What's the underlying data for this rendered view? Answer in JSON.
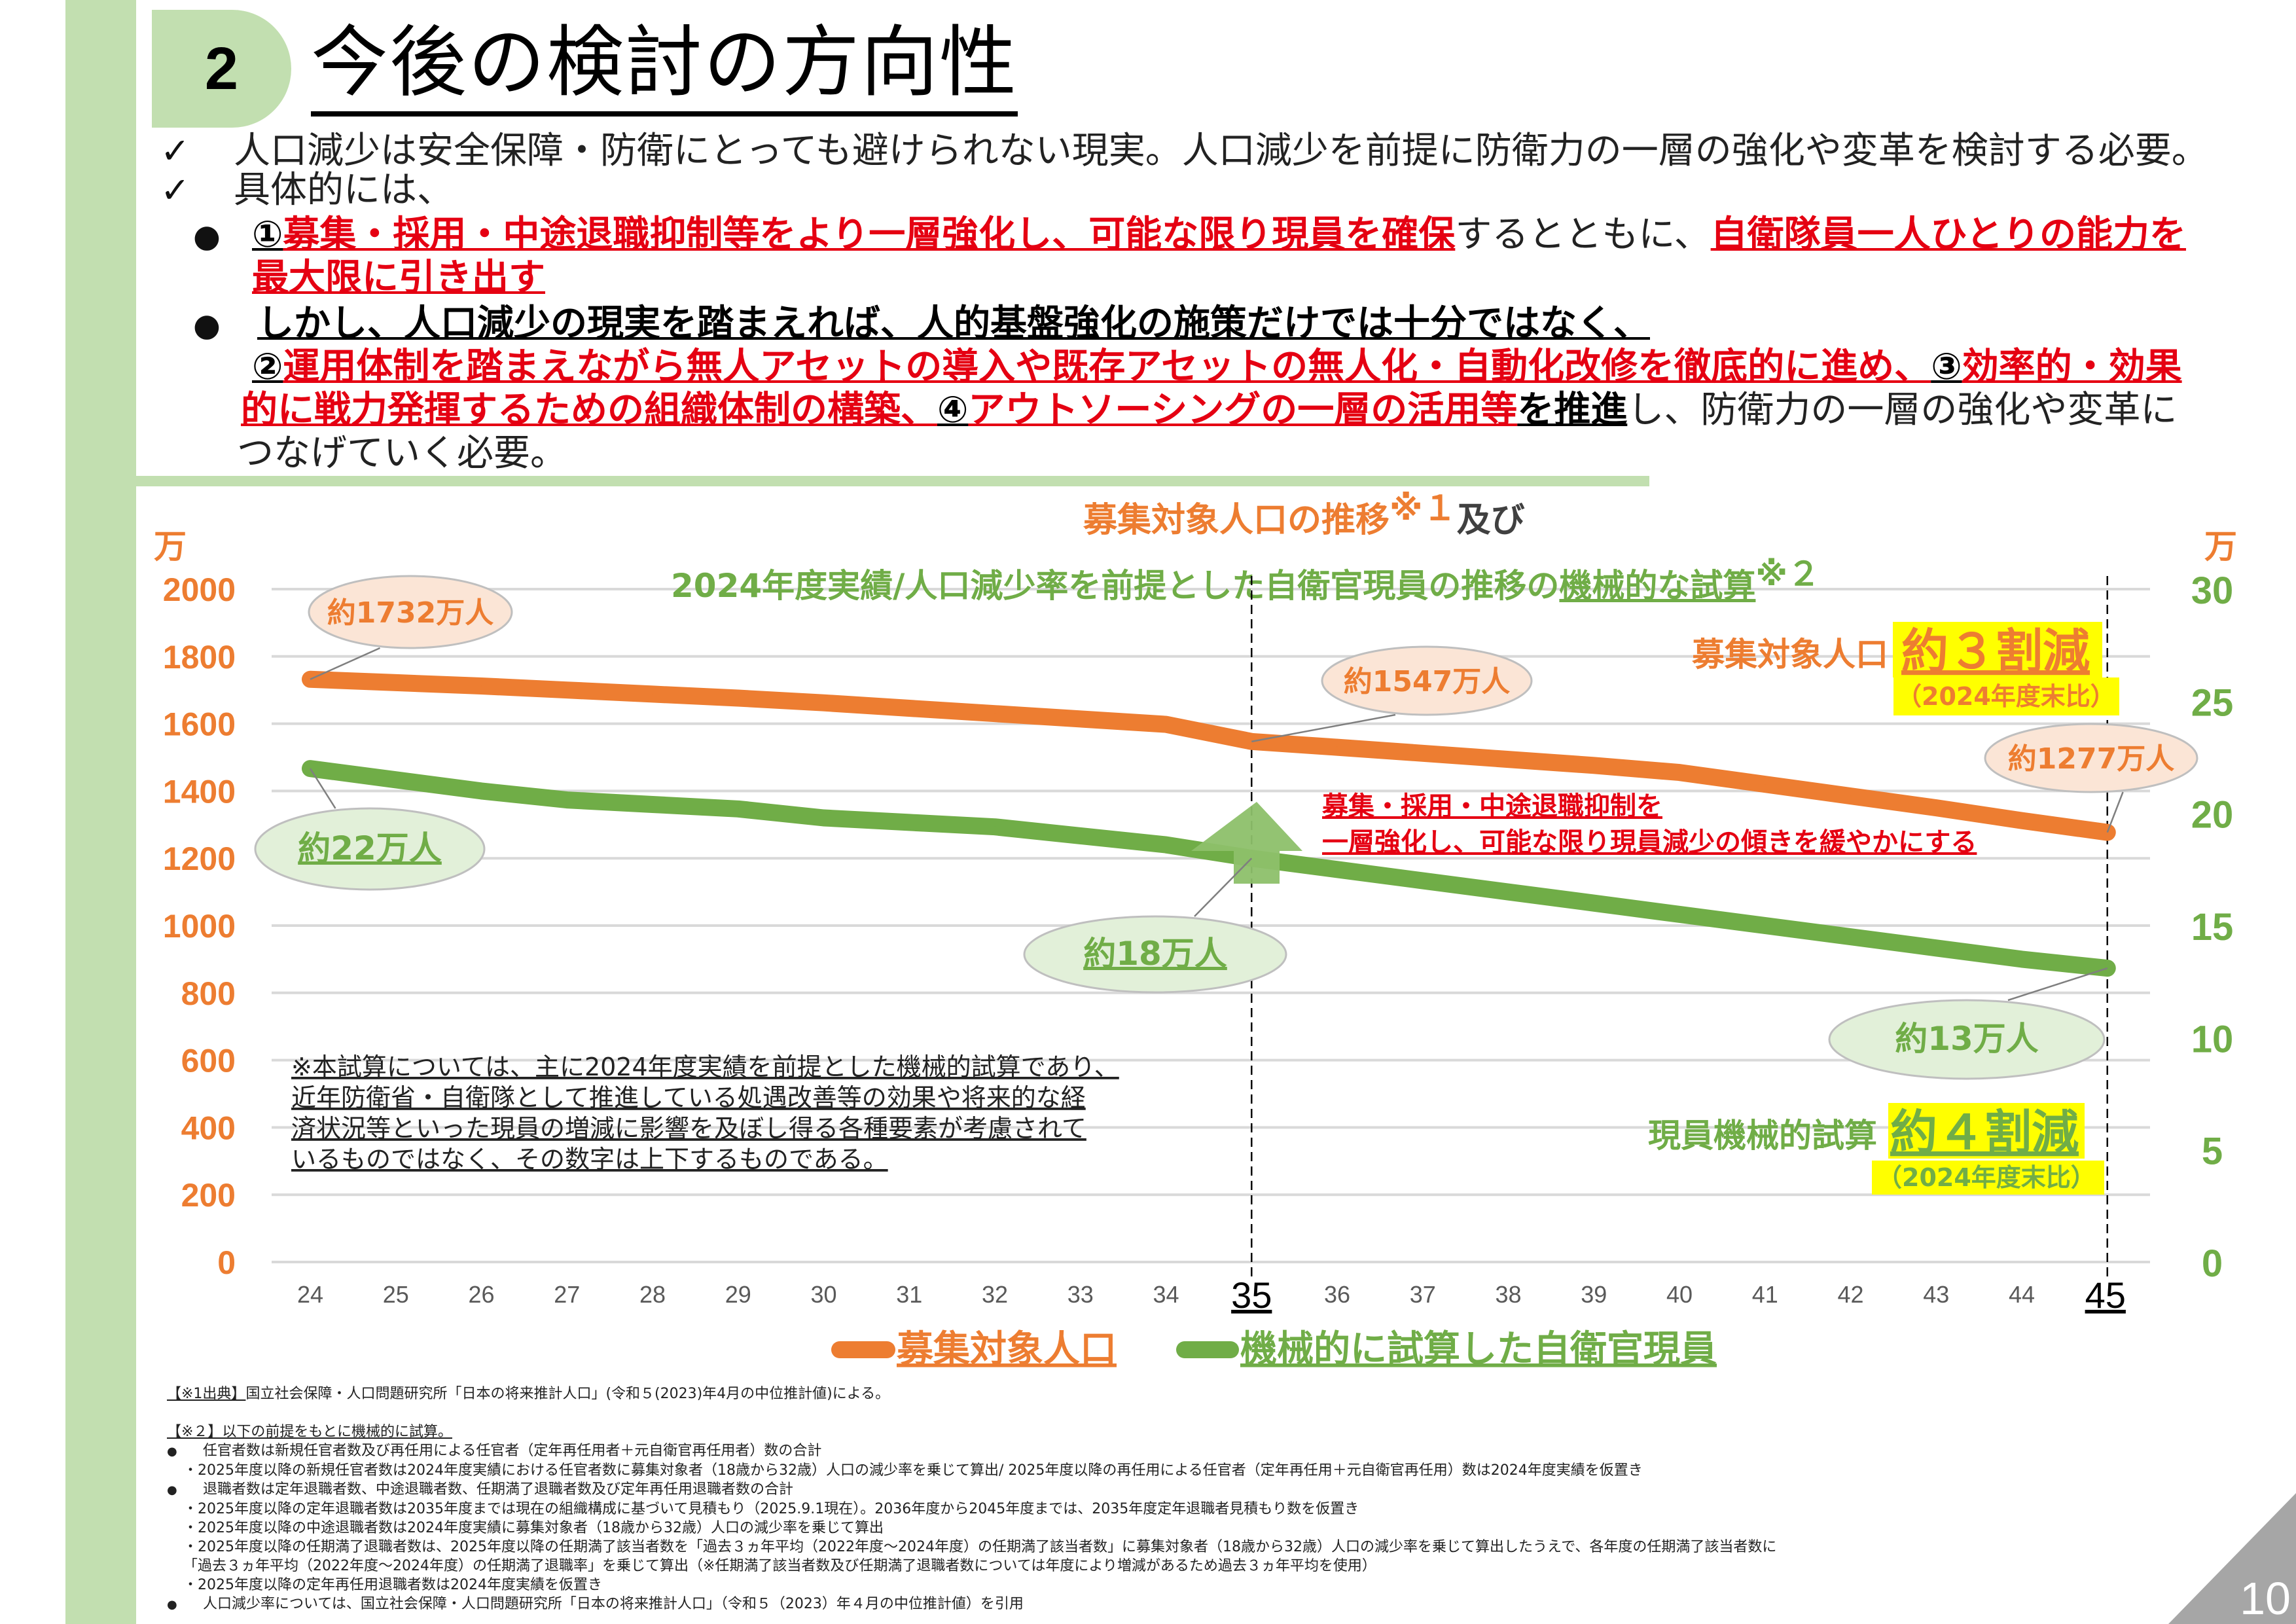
{
  "header": {
    "section_number": "2",
    "title": "今後の検討の方向性"
  },
  "bullets": {
    "check1": "人口減少は安全保障・防衛にとっても避けられない現実。人口減少を前提に防衛力の一層の強化や変革を検討する必要。",
    "check2": "具体的には、",
    "item1": {
      "num": "①",
      "red1": "募集・採用・中途退職抑制等をより一層強化し、可能な限り現員を確保",
      "plain1": "するとともに、",
      "red2": "自衛隊員一人ひとりの能力を",
      "red3": "最大限に引き出す"
    },
    "item2": {
      "black1": "しかし、人口減少の現実を踏まえれば、人的基盤強化の施策だけでは十分ではなく、",
      "num2": "②",
      "red1": "運用体制を踏まえながら無人アセットの導入や既存アセットの無人化・自動化改修を徹底的に進め、",
      "num3": "③",
      "red2": "効率的・効果",
      "red3": "的に戦力発揮するための組織体制の構築、",
      "num4": "④",
      "red4": "アウトソーシングの一層の活用等",
      "black2": "を推進",
      "plain1": "し、防衛力の一層の強化や変革に",
      "plain2": "つなげていく必要。"
    },
    "check_glyph": "✓",
    "dot_glyph": "●"
  },
  "chart_data": {
    "type": "line",
    "title_line1": "募集対象人口の推移",
    "title_line1_note": "※１",
    "title_line1_suffix": "及び",
    "title_line2": "2024年度実績/人口減少率を前提とした自衛官現員の推移の",
    "title_line2_underlined": "機械的な試算",
    "title_line2_note": "※２",
    "x": [
      24,
      25,
      26,
      27,
      28,
      29,
      30,
      31,
      32,
      33,
      34,
      35,
      36,
      37,
      38,
      39,
      40,
      41,
      42,
      43,
      44,
      45
    ],
    "x_tick_labels": [
      "24",
      "25",
      "26",
      "27",
      "28",
      "29",
      "30",
      "31",
      "32",
      "33",
      "34",
      "35",
      "36",
      "37",
      "38",
      "39",
      "40",
      "41",
      "42",
      "43",
      "44",
      "45"
    ],
    "highlight_x": [
      35,
      45
    ],
    "left_axis": {
      "unit": "万",
      "ylim": [
        0,
        2000
      ],
      "ticks": [
        0,
        200,
        400,
        600,
        800,
        1000,
        1200,
        1400,
        1600,
        1800,
        2000
      ],
      "color": "#ed7d31"
    },
    "right_axis": {
      "unit": "万",
      "ylim": [
        0,
        30
      ],
      "ticks": [
        0,
        5,
        10,
        15,
        20,
        25,
        30
      ],
      "color": "#70ad47"
    },
    "grid": true,
    "series": [
      {
        "name": "募集対象人口",
        "axis": "left",
        "color": "#ed7d31",
        "values": [
          1732,
          1722,
          1712,
          1700,
          1688,
          1676,
          1662,
          1646,
          1630,
          1614,
          1598,
          1547,
          1530,
          1512,
          1494,
          1476,
          1455,
          1420,
          1385,
          1350,
          1312,
          1277
        ]
      },
      {
        "name": "機械的に試算した自衛官現員",
        "axis": "right",
        "color": "#70ad47",
        "values": [
          22.0,
          21.5,
          21.0,
          20.6,
          20.4,
          20.2,
          19.8,
          19.6,
          19.4,
          19.0,
          18.6,
          18.0,
          17.5,
          17.0,
          16.5,
          16.0,
          15.5,
          15.0,
          14.5,
          14.0,
          13.5,
          13.1
        ]
      }
    ],
    "callouts": [
      {
        "text": "約1732万人",
        "series": "募集対象人口",
        "x": 24
      },
      {
        "text": "約1547万人",
        "series": "募集対象人口",
        "x": 35
      },
      {
        "text": "約1277万人",
        "series": "募集対象人口",
        "x": 45
      },
      {
        "text": "約22万人",
        "series": "機械的に試算した自衛官現員",
        "x": 24
      },
      {
        "text": "約18万人",
        "series": "機械的に試算した自衛官現員",
        "x": 35
      },
      {
        "text": "約13万人",
        "series": "機械的に試算した自衛官現員",
        "x": 45
      }
    ],
    "annotation_red": [
      "募集・採用・中途退職抑制を",
      "一層強化し、可能な限り現員減少の傾きを緩やかにする"
    ],
    "summary_orange": {
      "label": "募集対象人口",
      "value": "約３割減",
      "sub": "（2024年度末比）"
    },
    "summary_green": {
      "label": "現員機械的試算",
      "value": "約４割減",
      "sub": "（2024年度末比）"
    },
    "note": [
      "※本試算については、主に2024年度実績を前提とした機械的試算であり、",
      "近年防衛省・自衛隊として推進している処遇改善等の効果や将来的な経",
      "済状況等といった現員の増減に影響を及ぼし得る各種要素が考慮されて",
      "いるものではなく、その数字は上下するものである。"
    ],
    "legend": [
      "募集対象人口",
      "機械的に試算した自衛官現員"
    ],
    "legend_position": "bottom",
    "colors": {
      "orange": "#ed7d31",
      "green": "#70ad47",
      "red": "#e50012",
      "highlight": "#ffff00",
      "bubble_orange": "#fbe5d6",
      "bubble_green": "#e2f0d9"
    }
  },
  "footnotes": {
    "n1_head": "【※1出典】",
    "n1_text": "国立社会保障・人口問題研究所「日本の将来推計人口」(令和５(2023)年4月の中位推計値)による。",
    "n2_head": "【※２】以下の前提をもとに機械的に試算。",
    "lines": [
      {
        "kind": "bullet",
        "text": "任官者数は新規任官者数及び再任用による任官者（定年再任用者＋元自衛官再任用者）数の合計"
      },
      {
        "kind": "sub",
        "text": "・2025年度以降の新規任官者数は2024年度実績における任官者数に募集対象者（18歳から32歳）人口の減少率を乗じて算出/ 2025年度以降の再任用による任官者（定年再任用＋元自衛官再任用）数は2024年度実績を仮置き"
      },
      {
        "kind": "bullet",
        "text": "退職者数は定年退職者数、中途退職者数、任期満了退職者数及び定年再任用退職者数の合計"
      },
      {
        "kind": "sub",
        "text": "・2025年度以降の定年退職者数は2035年度までは現在の組織構成に基づいて見積もり（2025.9.1現在）。2036年度から2045年度までは、2035年度定年退職者見積もり数を仮置き"
      },
      {
        "kind": "sub",
        "text": "・2025年度以降の中途退職者数は2024年度実績に募集対象者（18歳から32歳）人口の減少率を乗じて算出"
      },
      {
        "kind": "sub",
        "text": "・2025年度以降の任期満了退職者数は、2025年度以降の任期満了該当者数を「過去３ヵ年平均（2022年度～2024年度）の任期満了該当者数」に募集対象者（18歳から32歳）人口の減少率を乗じて算出したうえで、各年度の任期満了該当者数に"
      },
      {
        "kind": "sub",
        "text": "「過去３ヵ年平均（2022年度～2024年度）の任期満了退職率」を乗じて算出（※任期満了該当者数及び任期満了退職者数については年度により増減があるため過去３ヵ年平均を使用）"
      },
      {
        "kind": "sub",
        "text": "・2025年度以降の定年再任用退職者数は2024年度実績を仮置き"
      },
      {
        "kind": "bullet",
        "text": "人口減少率については、国立社会保障・人口問題研究所「日本の将来推計人口」（令和５（2023）年４月の中位推計値）を引用"
      }
    ],
    "bullet_glyph": "●"
  },
  "page_number": "10"
}
